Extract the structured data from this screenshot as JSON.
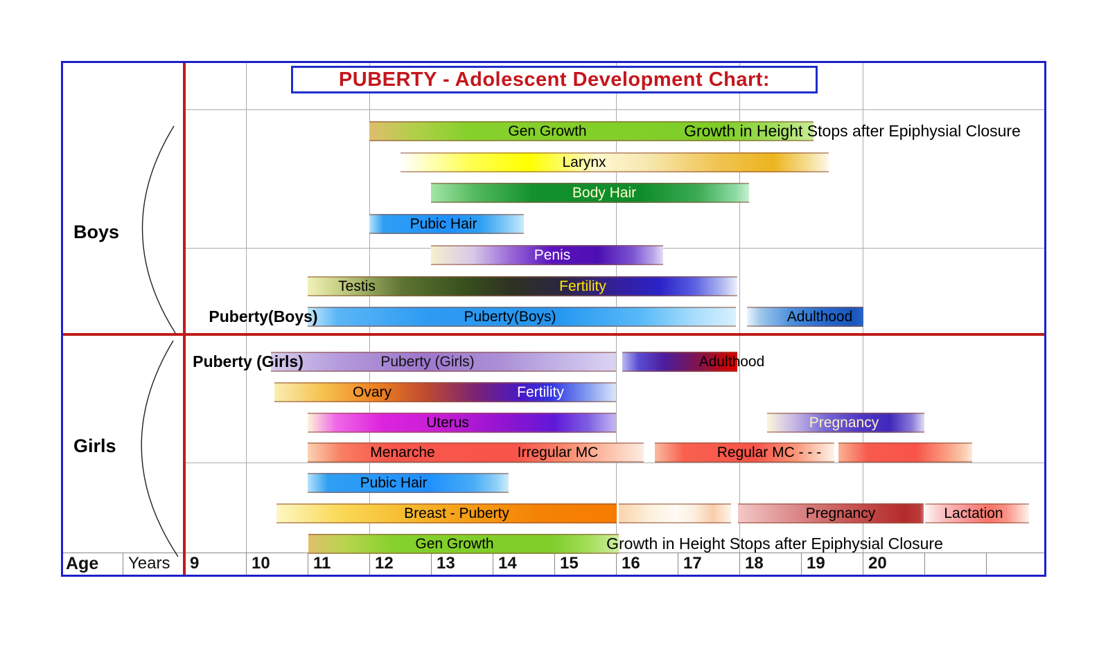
{
  "colors": {
    "border_blue": "#1e1ecb",
    "red_line": "#c01c1c",
    "title_red": "#c4161c",
    "grid": "#ababab"
  },
  "chart_data": {
    "type": "bar",
    "subtype": "gantt-development-timeline",
    "title": "PUBERTY - Adolescent Development Chart:",
    "xlabel": "Age (Years)",
    "xlim": [
      9,
      23
    ],
    "grid": "partial",
    "legend": "none",
    "axis": {
      "label": "Age",
      "unit": "Years",
      "years": [
        "9",
        "10",
        "11",
        "12",
        "13",
        "14",
        "15",
        "16",
        "17",
        "18",
        "19",
        "20",
        "",
        ""
      ],
      "gridline_ages": [
        10,
        12,
        16,
        18,
        20
      ]
    },
    "sections": [
      {
        "name": "Boys",
        "rows": [
          {
            "bars": [
              {
                "s": 12.0,
                "e": 19.2,
                "bg": "linear-gradient(90deg,#dfbd6e 0%,#b3cf4a 10%,#86d02c 22%,#7fce28 80%,#9ddd55 90%,#c8ec96 100%)"
              }
            ],
            "texts": [
              {
                "t": "Gen Growth",
                "at": 14.89,
                "c": "#000000"
              },
              {
                "t": "Growth in Height Stops after Epiphysial Closure",
                "at": 19.83,
                "c": "#000000",
                "annot": 1
              }
            ]
          },
          {
            "bars": [
              {
                "s": 12.5,
                "e": 19.45,
                "bg": "linear-gradient(90deg,#ffffff 0%,#ffff55 16%,#ffff00 30%,#fdf8d0 46%,#f7e7ae 58%,#f0c452 74%,#ecb51e 87%,#f6e2a0 96%,#fdf8ea 100%)"
              }
            ],
            "texts": [
              {
                "t": "Larynx",
                "at": 15.48,
                "c": "#000000"
              }
            ]
          },
          {
            "bars": [
              {
                "s": 13.0,
                "e": 18.16,
                "bg": "linear-gradient(90deg,#a2e6a6 0%,#53b95e 14%,#13912d 32%,#0e8c2a 66%,#3dab55 84%,#8fdca4 96%,#c8f0d4 100%)"
              }
            ],
            "texts": [
              {
                "t": "Body Hair",
                "at": 15.81,
                "c": "#ffffcc"
              }
            ]
          },
          {
            "bars": [
              {
                "s": 12.0,
                "e": 14.5,
                "bg": "linear-gradient(90deg,#b5e3fb 0%,#2f9ff2 9%,#1e90ff 52%,#2f9ff2 72%,#7ec8f8 88%,#c8eafc 100%)"
              }
            ],
            "texts": [
              {
                "t": "Pubic Hair",
                "at": 13.2,
                "c": "#000000"
              }
            ]
          },
          {
            "bars": [
              {
                "s": 13.0,
                "e": 16.76,
                "bg": "linear-gradient(90deg,#f6efcc 0%,#d9c8e8 18%,#9a6ad8 34%,#5a13bd 52%,#4d0fb2 72%,#7c55d2 87%,#bba8ea 96%,#e4dcf6 100%)"
              }
            ],
            "texts": [
              {
                "t": "Penis",
                "at": 14.97,
                "c": "#ffffff"
              }
            ]
          },
          {
            "bars": [
              {
                "s": 11.0,
                "e": 17.97,
                "bg": "linear-gradient(90deg,#f0f2b8 0%,#c3cc80 8%,#5d7431 22%,#39511e 36%,#2d3122 48%,#2c2547 60%,#33209b 72%,#2b22c8 82%,#5a60e0 90%,#b8c0f2 97%,#eef0fc 100%)"
              }
            ],
            "texts": [
              {
                "t": "Testis",
                "at": 11.8,
                "c": "#000000"
              },
              {
                "t": "Fertility",
                "at": 15.46,
                "c": "#ffe800"
              }
            ]
          },
          {
            "bars": [
              {
                "s": 11.0,
                "e": 17.94,
                "bg": "linear-gradient(90deg,#c2e8fd 0%,#5ab6f6 7%,#2e9bf2 28%,#2496f0 58%,#59baf8 78%,#a6dcfc 90%,#d8f1fe 100%)"
              },
              {
                "s": 18.12,
                "e": 20.01,
                "bg": "linear-gradient(90deg,#eaf4fd 0%,#9cc6ec 12%,#4b8fdc 38%,#2468cc 68%,#1a56bc 92%,#2a66c8 100%)"
              }
            ],
            "texts": [
              {
                "t": "Puberty(Boys)",
                "at": 10.28,
                "c": "#000000",
                "b": 1
              },
              {
                "t": "Puberty(Boys)",
                "at": 14.28,
                "c": "#000000"
              },
              {
                "t": "Adulthood",
                "at": 19.3,
                "c": "#000000"
              }
            ]
          }
        ]
      },
      {
        "name": "Girls",
        "rows": [
          {
            "bars": [
              {
                "s": 10.4,
                "e": 16.0,
                "bg": "linear-gradient(90deg,#d6cbee 0%,#b49adc 20%,#9d77cd 44%,#ab8ed6 66%,#c6b8e8 86%,#dcd4f2 100%)"
              },
              {
                "s": 16.1,
                "e": 17.97,
                "bg": "linear-gradient(90deg,#b8baf2 0%,#5b4cd4 14%,#4b1e9e 36%,#6d1668 56%,#991034 76%,#cc0505 92%,#d80000 100%)"
              }
            ],
            "texts": [
              {
                "t": "Puberty (Girls)",
                "at": 10.03,
                "c": "#000000",
                "b": 1
              },
              {
                "t": "Puberty (Girls)",
                "at": 12.94,
                "c": "#111111"
              },
              {
                "t": "Adulthood",
                "at": 17.88,
                "c": "#000000"
              }
            ]
          },
          {
            "bars": [
              {
                "s": 10.46,
                "e": 16.0,
                "bg": "linear-gradient(90deg,#f9eeb2 0%,#f6c250 14%,#ef8422 29%,#c04c2e 44%,#7a2374 59%,#4a18c4 72%,#3136e2 81%,#7d96ef 91%,#dce6fb 100%)"
              }
            ],
            "texts": [
              {
                "t": "Ovary",
                "at": 12.04,
                "c": "#000000"
              },
              {
                "t": "Fertility",
                "at": 14.78,
                "c": "#ffffff"
              }
            ]
          },
          {
            "bars": [
              {
                "s": 11.0,
                "e": 16.0,
                "bg": "linear-gradient(90deg,#fdf4d8 0%,#f06ae8 9%,#dd25dd 24%,#c51cd6 44%,#9114d0 64%,#6018d8 80%,#7e60e2 91%,#c4b8f2 100%)"
              },
              {
                "s": 18.45,
                "e": 21.0,
                "bg": "linear-gradient(90deg,#fdf6dc 0%,#c3b4e6 18%,#7467d2 38%,#5138c6 58%,#4028ba 78%,#8a7ad8 92%,#e2dcf6 100%)"
              }
            ],
            "texts": [
              {
                "t": "Uterus",
                "at": 13.27,
                "c": "#000000"
              },
              {
                "t": "Pregnancy",
                "at": 19.7,
                "c": "#fdf2c0"
              }
            ]
          },
          {
            "bars": [
              {
                "s": 11.0,
                "e": 16.45,
                "bg": "linear-gradient(90deg,#fbd2b2 0%,#f97f62 10%,#f8564c 24%,#f8544a 62%,#f98e72 78%,#fbc4ac 90%,#fdece2 100%)"
              },
              {
                "s": 16.63,
                "e": 19.54,
                "bg": "linear-gradient(90deg,#f9bca2 0%,#f8614f 16%,#f8544a 56%,#fa9478 78%,#fcd2c0 92%,#fef2ec 100%)"
              },
              {
                "s": 19.61,
                "e": 21.78,
                "bg": "linear-gradient(90deg,#f9b294 0%,#f85a4e 22%,#f8544a 58%,#faa184 82%,#fcd0b4 95%,#fdebdc 100%)"
              }
            ],
            "texts": [
              {
                "t": "Menarche",
                "at": 12.54,
                "c": "#000000"
              },
              {
                "t": "Irregular MC",
                "at": 15.06,
                "c": "#000000"
              },
              {
                "t": "Regular MC - - -",
                "at": 18.48,
                "c": "#000000"
              }
            ]
          },
          {
            "bars": [
              {
                "s": 11.0,
                "e": 14.26,
                "bg": "linear-gradient(90deg,#b5e3fb 0%,#2f9ff2 10%,#1e90ff 60%,#47abf5 82%,#8fd0f8 94%,#cfecfc 100%)"
              }
            ],
            "texts": [
              {
                "t": "Pubic Hair",
                "at": 12.39,
                "c": "#000000"
              }
            ]
          },
          {
            "bars": [
              {
                "s": 10.49,
                "e": 16.01,
                "bg": "linear-gradient(90deg,#fdf7c2 0%,#fada5a 18%,#f6bb2e 38%,#f59a14 58%,#f58202 78%,#f67c00 100%)"
              },
              {
                "s": 16.04,
                "e": 17.87,
                "bg": "linear-gradient(90deg,#fbd4ac 0%,#fdf2e0 30%,#fefaf4 52%,#fceedc 68%,#f9cdaa 84%,#fdf4ea 100%)"
              },
              {
                "s": 17.98,
                "e": 20.99,
                "bg": "linear-gradient(90deg,#f4c8c8 0%,#e29a9a 22%,#cf6a6a 48%,#c04444 72%,#b52a2a 90%,#bb3b3b 98%,#cf7878 100%)"
              },
              {
                "s": 21.01,
                "e": 22.7,
                "bg": "linear-gradient(90deg,#fef4f4 0%,#fbc4c4 16%,#f89090 42%,#f87468 62%,#f99286 78%,#fcc6bc 90%,#fef2ee 100%)"
              }
            ],
            "texts": [
              {
                "t": "Breast - Puberty",
                "at": 13.42,
                "c": "#000000"
              },
              {
                "t": "Pregnancy",
                "at": 19.64,
                "c": "#000000"
              },
              {
                "t": "Lactation",
                "at": 21.8,
                "c": "#000000"
              }
            ]
          },
          {
            "bars": [
              {
                "s": 11.01,
                "e": 16.04,
                "bg": "linear-gradient(90deg,#e0bf6c 0%,#b8d44e 12%,#84d02c 28%,#7ecd28 78%,#a2de58 90%,#cfeca0 100%)"
              }
            ],
            "texts": [
              {
                "t": "Gen Growth",
                "at": 13.38,
                "c": "#000000"
              },
              {
                "t": "Growth in Height Stops after Epiphysial Closure",
                "at": 18.57,
                "c": "#000000",
                "annot": 1
              }
            ]
          }
        ]
      }
    ]
  }
}
